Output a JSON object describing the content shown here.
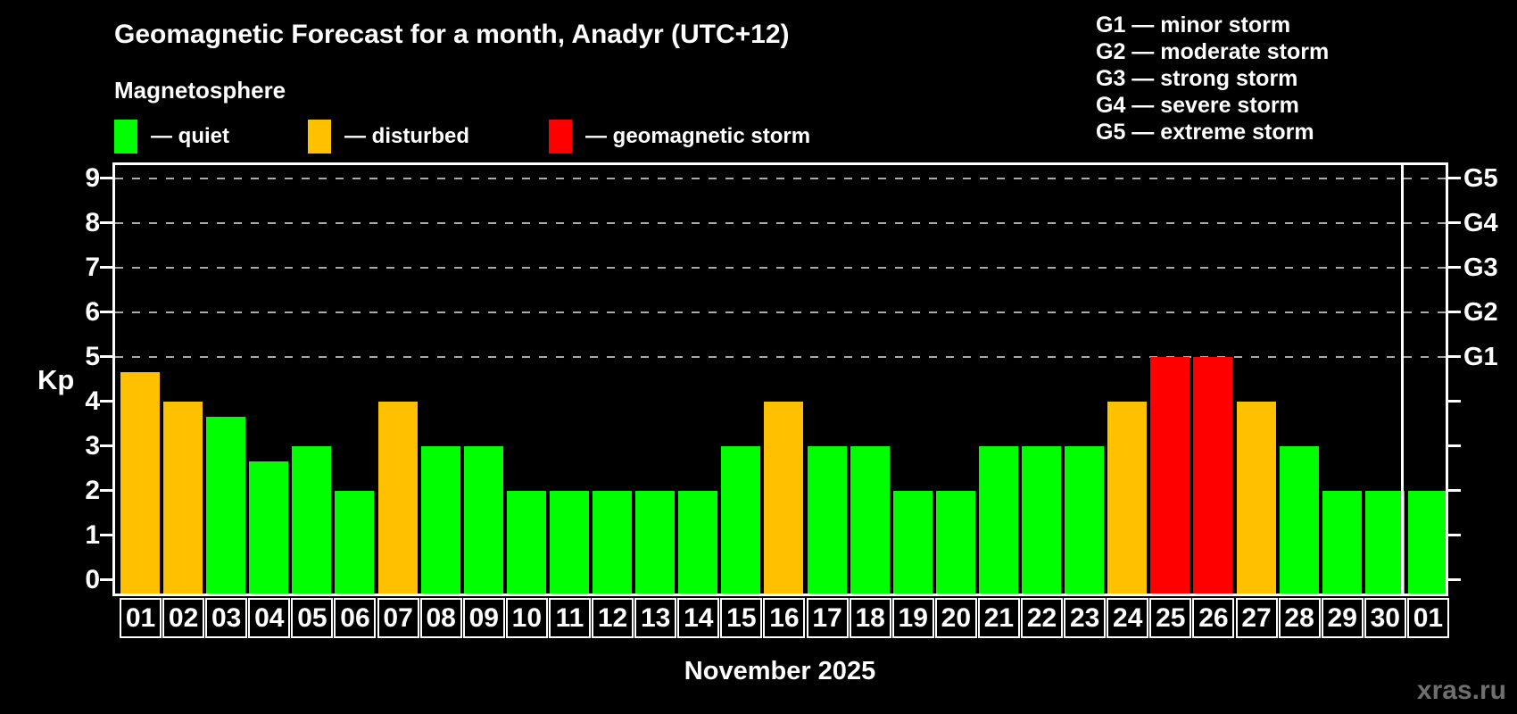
{
  "header": {
    "title": "Geomagnetic Forecast for a month, Anadyr (UTC+12)",
    "subtitle": "Magnetosphere"
  },
  "legend": {
    "quiet_label": "— quiet",
    "disturbed_label": "— disturbed",
    "storm_label": "— geomagnetic storm"
  },
  "g_legend": {
    "items": [
      "G1 — minor storm",
      "G2 — moderate storm",
      "G3 — strong storm",
      "G4 — severe storm",
      "G5 — extreme storm"
    ]
  },
  "colors": {
    "background": "#000000",
    "text": "#ffffff",
    "quiet": "#00ff00",
    "disturbed": "#ffc000",
    "storm": "#ff0000",
    "grid": "#aaaaaa",
    "frame": "#ffffff",
    "watermark": "#6f6f6f"
  },
  "watermark": "xras.ru",
  "chart_data": {
    "type": "bar",
    "title": "Geomagnetic Forecast for a month, Anadyr (UTC+12)",
    "subtitle": "Magnetosphere",
    "ylabel": "Kp",
    "month_label": "November 2025",
    "ylim": [
      0,
      9
    ],
    "y_ticks": [
      0,
      1,
      2,
      3,
      4,
      5,
      6,
      7,
      8,
      9
    ],
    "gridlines_kp": [
      5,
      6,
      7,
      8,
      9
    ],
    "grid": "dashed horizontal at storm levels only",
    "legend_position": "top",
    "right_scale": [
      {
        "label": "G1",
        "kp": 5
      },
      {
        "label": "G2",
        "kp": 6
      },
      {
        "label": "G3",
        "kp": 7
      },
      {
        "label": "G4",
        "kp": 8
      },
      {
        "label": "G5",
        "kp": 9
      }
    ],
    "separator_before_index": 30,
    "days": [
      {
        "label": "01",
        "kp": 4.67,
        "status": "disturbed"
      },
      {
        "label": "02",
        "kp": 4,
        "status": "disturbed"
      },
      {
        "label": "03",
        "kp": 3.67,
        "status": "quiet"
      },
      {
        "label": "04",
        "kp": 2.67,
        "status": "quiet"
      },
      {
        "label": "05",
        "kp": 3,
        "status": "quiet"
      },
      {
        "label": "06",
        "kp": 2,
        "status": "quiet"
      },
      {
        "label": "07",
        "kp": 4,
        "status": "disturbed"
      },
      {
        "label": "08",
        "kp": 3,
        "status": "quiet"
      },
      {
        "label": "09",
        "kp": 3,
        "status": "quiet"
      },
      {
        "label": "10",
        "kp": 2,
        "status": "quiet"
      },
      {
        "label": "11",
        "kp": 2,
        "status": "quiet"
      },
      {
        "label": "12",
        "kp": 2,
        "status": "quiet"
      },
      {
        "label": "13",
        "kp": 2,
        "status": "quiet"
      },
      {
        "label": "14",
        "kp": 2,
        "status": "quiet"
      },
      {
        "label": "15",
        "kp": 3,
        "status": "quiet"
      },
      {
        "label": "16",
        "kp": 4,
        "status": "disturbed"
      },
      {
        "label": "17",
        "kp": 3,
        "status": "quiet"
      },
      {
        "label": "18",
        "kp": 3,
        "status": "quiet"
      },
      {
        "label": "19",
        "kp": 2,
        "status": "quiet"
      },
      {
        "label": "20",
        "kp": 2,
        "status": "quiet"
      },
      {
        "label": "21",
        "kp": 3,
        "status": "quiet"
      },
      {
        "label": "22",
        "kp": 3,
        "status": "quiet"
      },
      {
        "label": "23",
        "kp": 3,
        "status": "quiet"
      },
      {
        "label": "24",
        "kp": 4,
        "status": "disturbed"
      },
      {
        "label": "25",
        "kp": 5,
        "status": "storm"
      },
      {
        "label": "26",
        "kp": 5,
        "status": "storm"
      },
      {
        "label": "27",
        "kp": 4,
        "status": "disturbed"
      },
      {
        "label": "28",
        "kp": 3,
        "status": "quiet"
      },
      {
        "label": "29",
        "kp": 2,
        "status": "quiet"
      },
      {
        "label": "30",
        "kp": 2,
        "status": "quiet"
      },
      {
        "label": "01",
        "kp": 2,
        "status": "quiet",
        "next_month": true
      }
    ]
  }
}
